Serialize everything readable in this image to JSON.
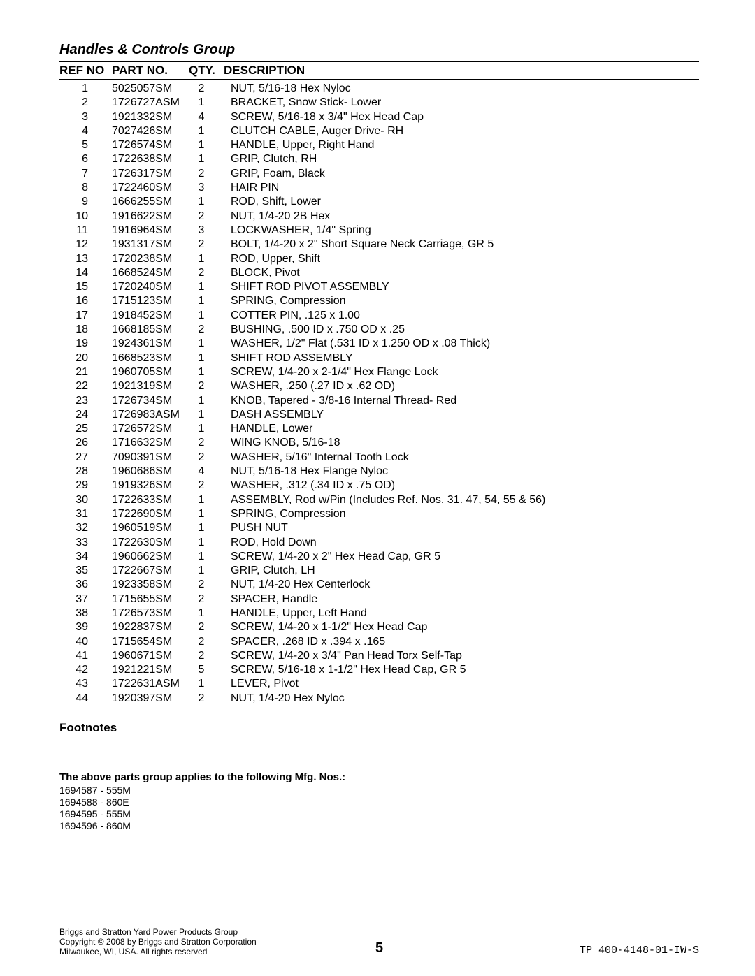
{
  "title": "Handles & Controls Group",
  "columns": {
    "ref": "REF NO",
    "part": "PART NO.",
    "qty": "QTY.",
    "desc": "DESCRIPTION"
  },
  "rows": [
    {
      "ref": "1",
      "part": "5025057SM",
      "qty": "2",
      "desc": "NUT, 5/16-18 Hex Nyloc"
    },
    {
      "ref": "2",
      "part": "1726727ASM",
      "qty": "1",
      "desc": "BRACKET, Snow Stick- Lower"
    },
    {
      "ref": "3",
      "part": "1921332SM",
      "qty": "4",
      "desc": "SCREW, 5/16-18 x 3/4\" Hex Head Cap"
    },
    {
      "ref": "4",
      "part": "7027426SM",
      "qty": "1",
      "desc": "CLUTCH CABLE, Auger Drive- RH"
    },
    {
      "ref": "5",
      "part": "1726574SM",
      "qty": "1",
      "desc": "HANDLE, Upper, Right Hand"
    },
    {
      "ref": "6",
      "part": "1722638SM",
      "qty": "1",
      "desc": "GRIP, Clutch, RH"
    },
    {
      "ref": "7",
      "part": "1726317SM",
      "qty": "2",
      "desc": "GRIP, Foam, Black"
    },
    {
      "ref": "8",
      "part": "1722460SM",
      "qty": "3",
      "desc": "HAIR PIN"
    },
    {
      "ref": "9",
      "part": "1666255SM",
      "qty": "1",
      "desc": "ROD, Shift, Lower"
    },
    {
      "ref": "10",
      "part": "1916622SM",
      "qty": "2",
      "desc": "NUT, 1/4-20 2B Hex"
    },
    {
      "ref": "11",
      "part": "1916964SM",
      "qty": "3",
      "desc": "LOCKWASHER, 1/4\" Spring"
    },
    {
      "ref": "12",
      "part": "1931317SM",
      "qty": "2",
      "desc": "BOLT, 1/4-20 x 2\" Short Square Neck Carriage, GR 5"
    },
    {
      "ref": "13",
      "part": "1720238SM",
      "qty": "1",
      "desc": "ROD, Upper, Shift"
    },
    {
      "ref": "14",
      "part": "1668524SM",
      "qty": "2",
      "desc": "BLOCK, Pivot"
    },
    {
      "ref": "15",
      "part": "1720240SM",
      "qty": "1",
      "desc": "SHIFT ROD PIVOT ASSEMBLY"
    },
    {
      "ref": "16",
      "part": "1715123SM",
      "qty": "1",
      "desc": "SPRING, Compression"
    },
    {
      "ref": "17",
      "part": "1918452SM",
      "qty": "1",
      "desc": "COTTER PIN, .125 x 1.00"
    },
    {
      "ref": "18",
      "part": "1668185SM",
      "qty": "2",
      "desc": "BUSHING, .500 ID x .750 OD x .25"
    },
    {
      "ref": "19",
      "part": "1924361SM",
      "qty": "1",
      "desc": "WASHER, 1/2\" Flat (.531 ID x 1.250 OD x .08 Thick)"
    },
    {
      "ref": "20",
      "part": "1668523SM",
      "qty": "1",
      "desc": "SHIFT ROD ASSEMBLY"
    },
    {
      "ref": "21",
      "part": "1960705SM",
      "qty": "1",
      "desc": "SCREW, 1/4-20 x 2-1/4\" Hex Flange Lock"
    },
    {
      "ref": "22",
      "part": "1921319SM",
      "qty": "2",
      "desc": "WASHER, .250 (.27 ID x .62 OD)"
    },
    {
      "ref": "23",
      "part": "1726734SM",
      "qty": "1",
      "desc": "KNOB, Tapered - 3/8-16 Internal Thread- Red"
    },
    {
      "ref": "24",
      "part": "1726983ASM",
      "qty": "1",
      "desc": "DASH ASSEMBLY"
    },
    {
      "ref": "25",
      "part": "1726572SM",
      "qty": "1",
      "desc": "HANDLE, Lower"
    },
    {
      "ref": "26",
      "part": "1716632SM",
      "qty": "2",
      "desc": "WING KNOB, 5/16-18"
    },
    {
      "ref": "27",
      "part": "7090391SM",
      "qty": "2",
      "desc": "WASHER, 5/16\" Internal Tooth Lock"
    },
    {
      "ref": "28",
      "part": "1960686SM",
      "qty": "4",
      "desc": "NUT, 5/16-18 Hex Flange Nyloc"
    },
    {
      "ref": "29",
      "part": "1919326SM",
      "qty": "2",
      "desc": "WASHER, .312 (.34 ID x .75 OD)"
    },
    {
      "ref": "30",
      "part": "1722633SM",
      "qty": "1",
      "desc": "ASSEMBLY, Rod w/Pin (Includes Ref. Nos. 31. 47, 54, 55 & 56)"
    },
    {
      "ref": "31",
      "part": "1722690SM",
      "qty": "1",
      "desc": "SPRING, Compression"
    },
    {
      "ref": "32",
      "part": "1960519SM",
      "qty": "1",
      "desc": "PUSH NUT"
    },
    {
      "ref": "33",
      "part": "1722630SM",
      "qty": "1",
      "desc": "ROD, Hold Down"
    },
    {
      "ref": "34",
      "part": "1960662SM",
      "qty": "1",
      "desc": "SCREW, 1/4-20 x 2\" Hex Head Cap, GR 5"
    },
    {
      "ref": "35",
      "part": "1722667SM",
      "qty": "1",
      "desc": "GRIP, Clutch, LH"
    },
    {
      "ref": "36",
      "part": "1923358SM",
      "qty": "2",
      "desc": "NUT, 1/4-20 Hex Centerlock"
    },
    {
      "ref": "37",
      "part": "1715655SM",
      "qty": "2",
      "desc": "SPACER, Handle"
    },
    {
      "ref": "38",
      "part": "1726573SM",
      "qty": "1",
      "desc": "HANDLE, Upper, Left Hand"
    },
    {
      "ref": "39",
      "part": "1922837SM",
      "qty": "2",
      "desc": "SCREW, 1/4-20 x 1-1/2\" Hex Head Cap"
    },
    {
      "ref": "40",
      "part": "1715654SM",
      "qty": "2",
      "desc": "SPACER, .268 ID x .394 x .165"
    },
    {
      "ref": "41",
      "part": "1960671SM",
      "qty": "2",
      "desc": "SCREW, 1/4-20 x 3/4\" Pan Head Torx Self-Tap"
    },
    {
      "ref": "42",
      "part": "1921221SM",
      "qty": "5",
      "desc": "SCREW, 5/16-18 x 1-1/2\" Hex Head Cap, GR 5"
    },
    {
      "ref": "43",
      "part": "1722631ASM",
      "qty": "1",
      "desc": "LEVER, Pivot"
    },
    {
      "ref": "44",
      "part": "1920397SM",
      "qty": "2",
      "desc": "NUT, 1/4-20 Hex Nyloc"
    }
  ],
  "footnotes_label": "Footnotes",
  "applies_label": "The above parts group applies to the following Mfg. Nos.:",
  "mfg_nos": [
    "1694587 - 555M",
    "1694588 - 860E",
    "1694595 - 555M",
    "1694596 - 860M"
  ],
  "footer": {
    "left1": "Briggs and Stratton Yard Power Products Group",
    "left2": "Copyright © 2008 by Briggs and Stratton Corporation",
    "left3": "Milwaukee, WI, USA. All rights reserved",
    "page": "5",
    "right": "TP 400-4148-01-IW-S"
  }
}
